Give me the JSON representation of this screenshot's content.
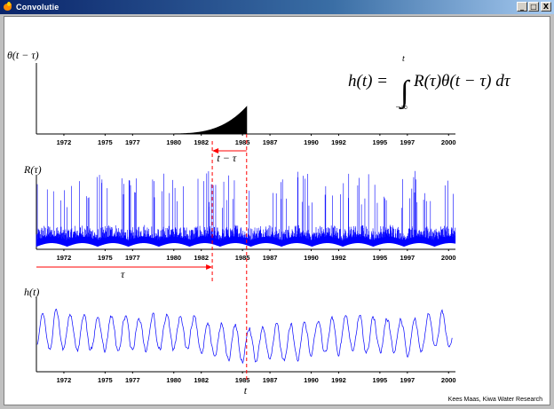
{
  "window": {
    "title": "Convolutie",
    "buttons": {
      "minimize": "_",
      "maximize": "□",
      "close": "X"
    }
  },
  "formula": {
    "lhs": "h(t) =",
    "upper_limit": "t",
    "lower_limit": "−∞",
    "integrand": "R(τ)θ(t − τ) dτ"
  },
  "panels": {
    "theta": {
      "ylabel": "θ(t − τ)"
    },
    "rain": {
      "ylabel": "R(τ)"
    },
    "response": {
      "ylabel": "h(t)"
    }
  },
  "annotations": {
    "t_minus_tau": "t − τ",
    "tau": "τ",
    "t": "t"
  },
  "axis": {
    "tick_labels": [
      "1972",
      "1975",
      "1977",
      "1980",
      "1982",
      "1985",
      "1987",
      "1990",
      "1992",
      "1995",
      "1997",
      "2000"
    ]
  },
  "credit": "Kees Maas, Kiwa Water Research",
  "colors": {
    "titlebar": "#0a246a",
    "series": "#0000ff",
    "marker": "#ff0000"
  },
  "chart_data": {
    "type": "line",
    "x_range": [
      1970.5,
      2001.0
    ],
    "t": 1985.8,
    "tau": 1983.3,
    "theta_start": 1980.0
  }
}
